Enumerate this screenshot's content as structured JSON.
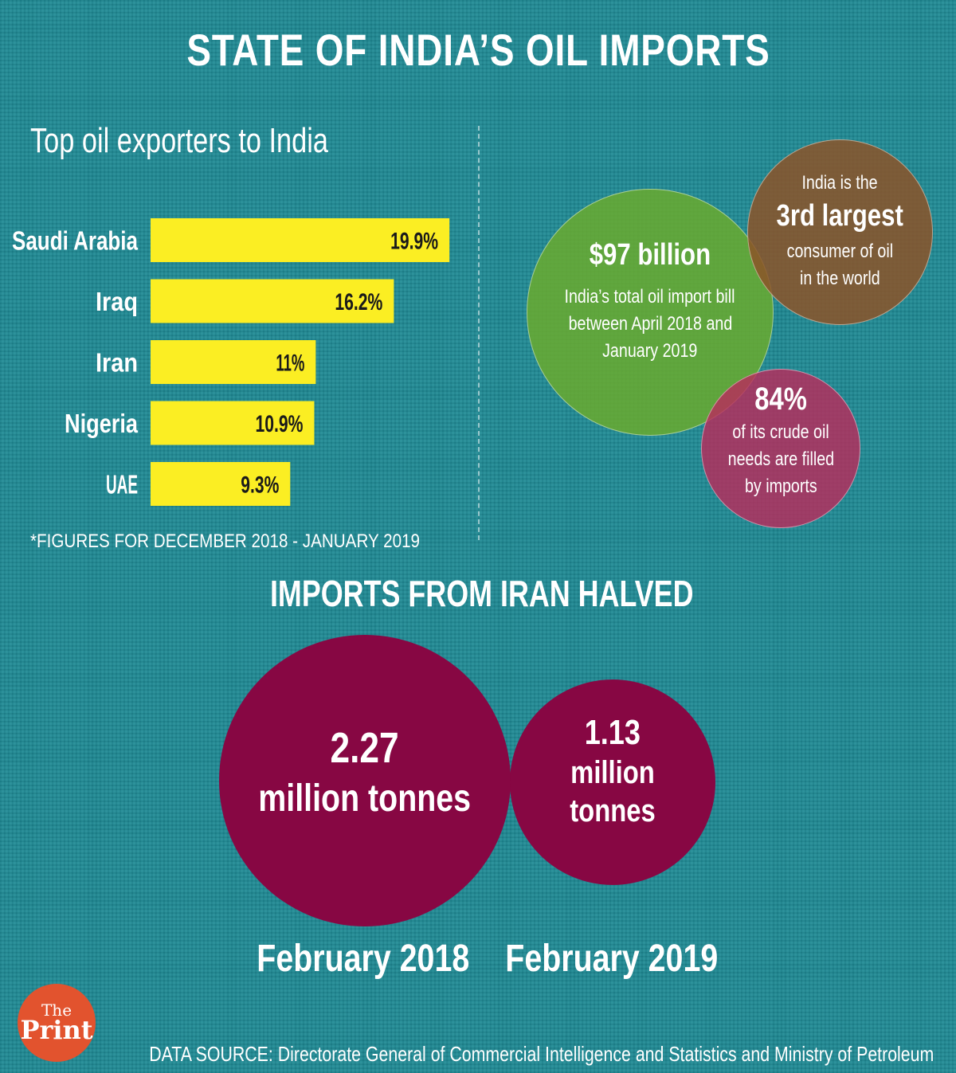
{
  "title": "STATE OF INDIA’S OIL IMPORTS",
  "chart_data": [
    {
      "type": "bar",
      "orientation": "horizontal",
      "title": "Top oil exporters to India",
      "categories": [
        "Saudi Arabia",
        "Iraq",
        "Iran",
        "Nigeria",
        "UAE"
      ],
      "values": [
        19.9,
        16.2,
        11,
        10.9,
        9.3
      ],
      "value_labels": [
        "19.9%",
        "16.2%",
        "11%",
        "10.9%",
        "9.3%"
      ],
      "unit": "%",
      "bar_color": "#fbee23",
      "footnote": "*FIGURES FOR DECEMBER 2018 - JANUARY 2019"
    },
    {
      "type": "bubble",
      "title": "IMPORTS FROM IRAN HALVED",
      "categories": [
        "February 2018",
        "February 2019"
      ],
      "values": [
        2.27,
        1.13
      ],
      "value_labels": [
        "2.27",
        "1.13"
      ],
      "unit": "million tonnes",
      "color": "#870743"
    }
  ],
  "facts": {
    "bill": {
      "value": "$97 billion",
      "lines": [
        "India’s total oil import bill",
        "between April 2018 and",
        "January 2019"
      ],
      "color": "#6aaa2e"
    },
    "consumer": {
      "intro": "India is the",
      "rank": "3rd largest",
      "lines": [
        "consumer of oil",
        "in the world"
      ],
      "color": "#8c5428"
    },
    "imports": {
      "value": "84%",
      "lines": [
        "of its crude oil",
        "needs are filled",
        "by imports"
      ],
      "color": "#b82c5c"
    }
  },
  "logo": {
    "top": "The",
    "bottom": "Print",
    "color": "#e2532e"
  },
  "source": "DATA SOURCE: Directorate General of Commercial Intelligence and Statistics and Ministry of Petroleum",
  "colors": {
    "background": "#1f8a95",
    "text": "#ffffff"
  }
}
